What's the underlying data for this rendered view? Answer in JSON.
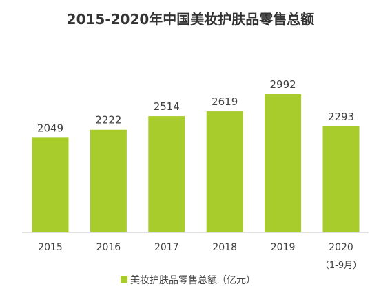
{
  "chart_data": {
    "type": "bar",
    "title": "2015-2020年中国美妆护肤品零售总额",
    "categories": [
      "2015",
      "2016",
      "2017",
      "2018",
      "2019",
      "2020"
    ],
    "category_sublabels": [
      "",
      "",
      "",
      "",
      "",
      "（1-9月）"
    ],
    "series": [
      {
        "name": "美妆护肤品零售总额（亿元）",
        "values": [
          2049,
          2222,
          2514,
          2619,
          2992,
          2293
        ]
      }
    ],
    "ylim": [
      0,
      3300
    ],
    "grid": false,
    "legend_position": "bottom",
    "bar_color": "#a8cc2c",
    "xlabel": "",
    "ylabel": ""
  }
}
